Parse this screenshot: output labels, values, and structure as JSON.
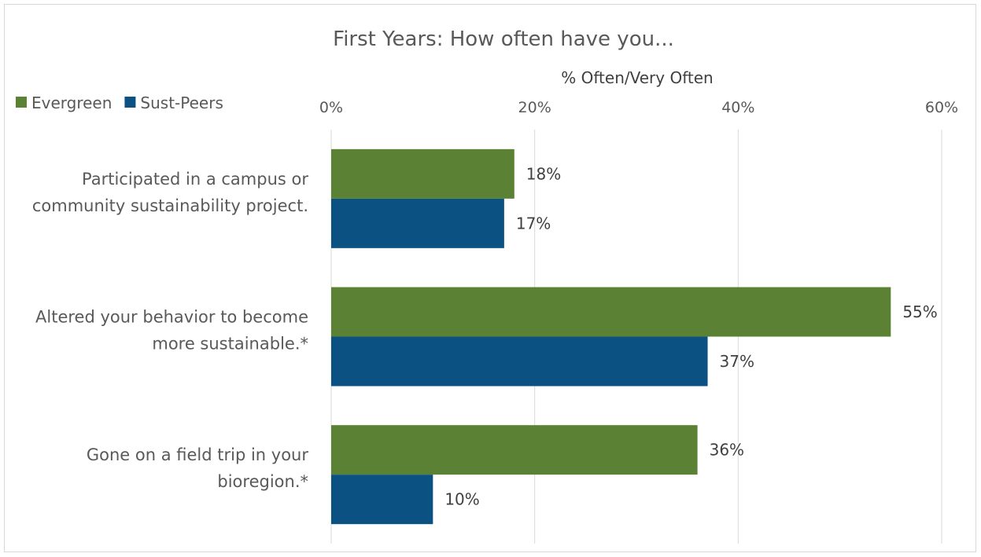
{
  "chart_data": {
    "type": "bar",
    "orientation": "horizontal",
    "title": "First Years: How often have you...",
    "xlabel": "% Often/Very Often",
    "ylabel": "",
    "xlim": [
      0,
      60
    ],
    "ticks": [
      "0%",
      "20%",
      "40%",
      "60%"
    ],
    "tick_values": [
      0,
      20,
      40,
      60
    ],
    "grid": true,
    "legend_position": "top-left",
    "categories": [
      "Participated in a campus or community sustainability project.",
      "Altered your behavior to become more sustainable.*",
      "Gone on a field trip in your bioregion.*"
    ],
    "category_lines": [
      [
        "Participated in a campus or",
        "community sustainability project."
      ],
      [
        "Altered your behavior to become",
        "more sustainable.*"
      ],
      [
        "Gone on a field trip in your",
        "bioregion.*"
      ]
    ],
    "series": [
      {
        "name": "Evergreen",
        "color": "#5b8234",
        "values": [
          18,
          55,
          36
        ],
        "labels": [
          "18%",
          "55%",
          "36%"
        ]
      },
      {
        "name": "Sust-Peers",
        "color": "#0b5181",
        "values": [
          17,
          37,
          10
        ],
        "labels": [
          "17%",
          "37%",
          "10%"
        ]
      }
    ]
  }
}
